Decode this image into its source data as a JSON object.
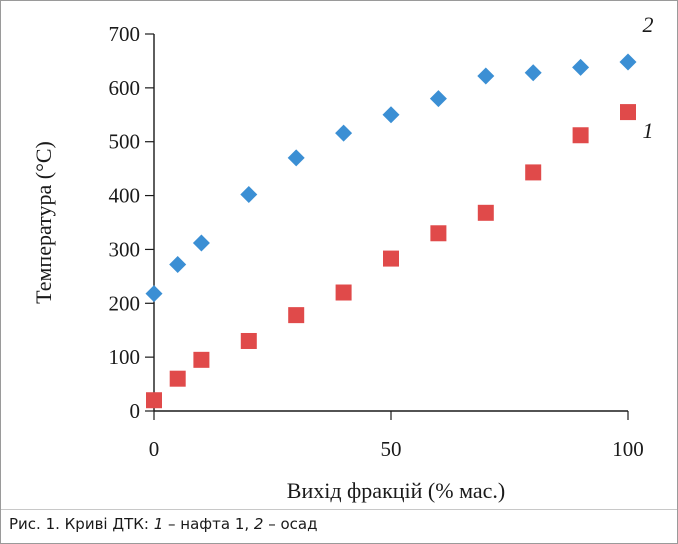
{
  "chart_data": {
    "type": "scatter",
    "xlabel": "Вихід фракцій (% мас.)",
    "ylabel": "Температура (°C)",
    "xlim": [
      0,
      100
    ],
    "ylim": [
      0,
      700
    ],
    "xticks": [
      0,
      50,
      100
    ],
    "yticks": [
      0,
      100,
      200,
      300,
      400,
      500,
      600,
      700
    ],
    "grid": false,
    "series": [
      {
        "name": "1",
        "marker": "square",
        "color": "#e04a4a",
        "x": [
          0,
          5,
          10,
          20,
          30,
          40,
          50,
          60,
          70,
          80,
          90,
          100
        ],
        "y": [
          20,
          60,
          95,
          130,
          178,
          220,
          283,
          330,
          368,
          443,
          512,
          555
        ]
      },
      {
        "name": "2",
        "marker": "diamond",
        "color": "#3b8fd4",
        "x": [
          0,
          5,
          10,
          20,
          30,
          40,
          50,
          60,
          70,
          80,
          90,
          100
        ],
        "y": [
          218,
          272,
          312,
          402,
          470,
          516,
          550,
          580,
          622,
          628,
          638,
          648
        ]
      }
    ]
  },
  "caption": {
    "prefix": "Рис. 1. Криві ДТК: ",
    "num1": "1",
    "text1": " – нафта 1, ",
    "num2": "2",
    "text2": " – осад"
  }
}
